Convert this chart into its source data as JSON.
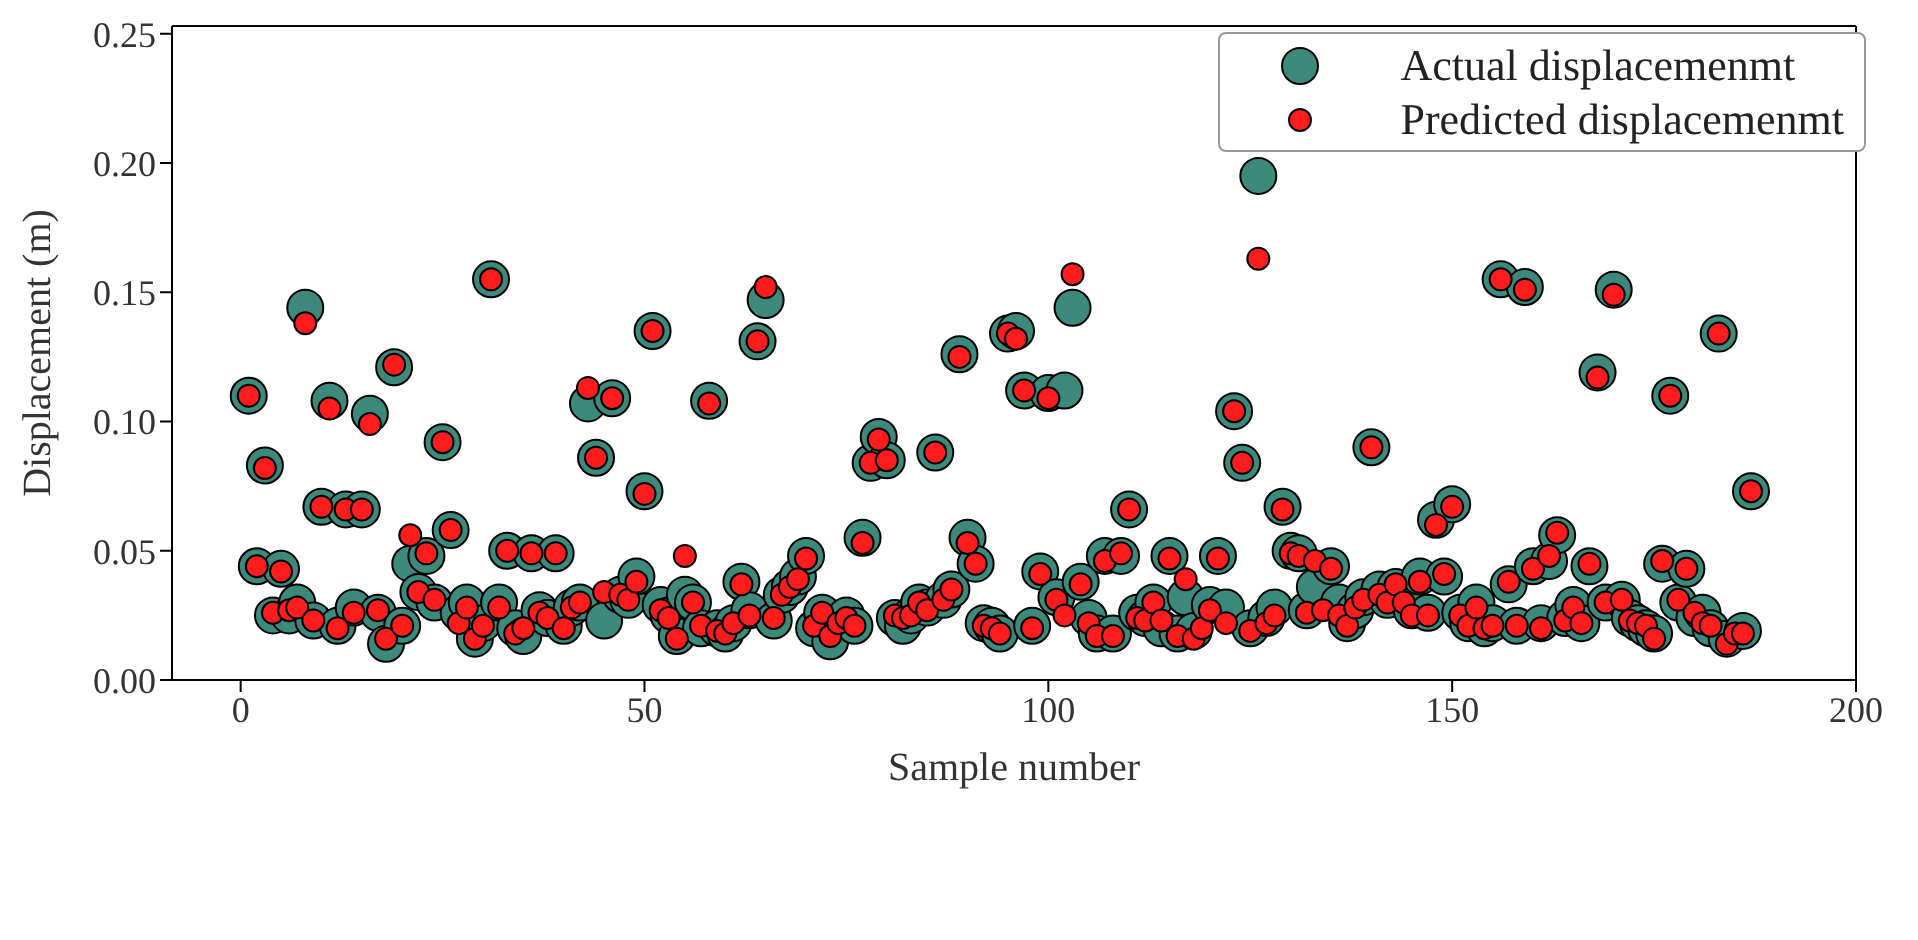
{
  "chart_data": {
    "type": "scatter",
    "xlabel": "Sample number",
    "ylabel": "Displacement (m)",
    "x": [
      1,
      2,
      3,
      4,
      5,
      6,
      7,
      8,
      9,
      10,
      11,
      12,
      13,
      14,
      15,
      16,
      17,
      18,
      19,
      20,
      21,
      22,
      23,
      24,
      25,
      26,
      27,
      28,
      29,
      30,
      31,
      32,
      33,
      34,
      35,
      36,
      37,
      38,
      39,
      40,
      41,
      42,
      43,
      44,
      45,
      46,
      47,
      48,
      49,
      50,
      51,
      52,
      53,
      54,
      55,
      56,
      57,
      58,
      59,
      60,
      61,
      62,
      63,
      64,
      65,
      66,
      67,
      68,
      69,
      70,
      71,
      72,
      73,
      74,
      75,
      76,
      77,
      78,
      79,
      80,
      81,
      82,
      83,
      84,
      85,
      86,
      87,
      88,
      89,
      90,
      91,
      92,
      93,
      94,
      95,
      96,
      97,
      98,
      99,
      100,
      101,
      102,
      103,
      104,
      105,
      106,
      107,
      108,
      109,
      110,
      111,
      112,
      113,
      114,
      115,
      116,
      117,
      118,
      119,
      120,
      121,
      122,
      123,
      124,
      125,
      126,
      127,
      128,
      129,
      130,
      131,
      132,
      133,
      134,
      135,
      136,
      137,
      138,
      139,
      140,
      141,
      142,
      143,
      144,
      145,
      146,
      147,
      148,
      149,
      150,
      151,
      152,
      153,
      154,
      155,
      156,
      157,
      158,
      159,
      160,
      161,
      162,
      163,
      164,
      165,
      166,
      167,
      168,
      169,
      170,
      171,
      172,
      173,
      174,
      175,
      176,
      177,
      178,
      179,
      180,
      181,
      182,
      183,
      184,
      185,
      186,
      187
    ],
    "series": [
      {
        "name": "Actual displacemenmt",
        "color": "#3d8a7c",
        "values": [
          0.11,
          0.044,
          0.083,
          0.025,
          0.043,
          0.025,
          0.03,
          0.144,
          0.023,
          0.067,
          0.108,
          0.021,
          0.066,
          0.028,
          0.066,
          0.103,
          0.026,
          0.014,
          0.121,
          0.021,
          0.045,
          0.034,
          0.048,
          0.03,
          0.092,
          0.058,
          0.026,
          0.03,
          0.016,
          0.022,
          0.155,
          0.03,
          0.05,
          0.02,
          0.017,
          0.049,
          0.027,
          0.024,
          0.049,
          0.021,
          0.028,
          0.03,
          0.107,
          0.086,
          0.023,
          0.109,
          0.033,
          0.031,
          0.04,
          0.073,
          0.135,
          0.029,
          0.025,
          0.017,
          0.033,
          0.03,
          0.02,
          0.108,
          0.02,
          0.018,
          0.022,
          0.038,
          0.027,
          0.131,
          0.147,
          0.023,
          0.033,
          0.036,
          0.04,
          0.048,
          0.02,
          0.026,
          0.015,
          null,
          0.025,
          0.021,
          0.055,
          0.084,
          0.094,
          0.085,
          0.024,
          0.021,
          0.025,
          0.03,
          0.028,
          0.088,
          0.031,
          0.035,
          0.126,
          0.055,
          0.045,
          0.022,
          0.021,
          0.018,
          0.134,
          0.135,
          0.112,
          0.021,
          0.042,
          0.111,
          0.032,
          0.112,
          0.144,
          0.038,
          0.024,
          0.018,
          0.048,
          0.018,
          0.048,
          0.066,
          0.026,
          0.024,
          0.03,
          0.02,
          0.048,
          0.018,
          0.032,
          0.019,
          null,
          0.029,
          0.048,
          0.028,
          0.104,
          0.084,
          0.02,
          0.195,
          0.024,
          0.028,
          0.067,
          0.05,
          0.049,
          0.027,
          0.036,
          null,
          0.044,
          0.03,
          0.022,
          0.027,
          0.032,
          0.09,
          0.035,
          0.031,
          0.036,
          null,
          0.027,
          0.04,
          0.026,
          0.062,
          0.04,
          0.068,
          0.026,
          0.022,
          0.03,
          0.02,
          0.022,
          0.155,
          0.037,
          0.021,
          0.152,
          0.044,
          0.022,
          0.046,
          0.056,
          0.024,
          0.029,
          0.022,
          0.044,
          0.119,
          0.03,
          0.151,
          0.031,
          0.024,
          0.022,
          0.02,
          0.018,
          0.045,
          0.11,
          0.03,
          0.043,
          0.024,
          0.026,
          0.02,
          0.134,
          0.016,
          null,
          0.019,
          0.073
        ]
      },
      {
        "name": "Predicted displacemenmt",
        "color": "#ff1c1c",
        "values": [
          0.11,
          0.044,
          0.082,
          0.026,
          0.042,
          0.027,
          0.028,
          0.138,
          0.023,
          0.067,
          0.105,
          0.02,
          0.066,
          0.026,
          0.066,
          0.099,
          0.027,
          0.016,
          0.122,
          0.021,
          0.056,
          0.034,
          0.049,
          0.031,
          0.092,
          0.058,
          0.022,
          0.028,
          0.016,
          0.021,
          0.155,
          0.028,
          0.05,
          0.018,
          0.02,
          0.049,
          0.026,
          0.024,
          0.049,
          0.02,
          0.028,
          0.03,
          0.113,
          0.086,
          0.034,
          0.109,
          0.033,
          0.031,
          0.038,
          0.072,
          0.135,
          0.027,
          0.024,
          0.016,
          0.048,
          0.03,
          0.021,
          0.107,
          0.019,
          0.018,
          0.022,
          0.037,
          0.025,
          0.131,
          0.152,
          0.024,
          0.033,
          0.036,
          0.039,
          0.047,
          0.021,
          0.026,
          0.017,
          0.022,
          0.024,
          0.021,
          0.053,
          0.084,
          0.093,
          0.085,
          0.025,
          0.024,
          0.025,
          0.03,
          0.027,
          0.088,
          0.031,
          0.035,
          0.125,
          0.053,
          0.045,
          0.021,
          0.02,
          0.018,
          0.134,
          0.132,
          0.112,
          0.02,
          0.041,
          0.109,
          0.031,
          0.025,
          0.157,
          0.037,
          0.022,
          0.017,
          0.046,
          0.017,
          0.049,
          0.066,
          0.024,
          0.023,
          0.03,
          0.023,
          0.047,
          0.017,
          0.039,
          0.016,
          0.02,
          0.027,
          0.047,
          0.022,
          0.104,
          0.084,
          0.019,
          0.163,
          0.022,
          0.025,
          0.066,
          0.049,
          0.048,
          0.026,
          0.046,
          0.027,
          0.043,
          0.025,
          0.021,
          0.028,
          0.031,
          0.09,
          0.033,
          0.03,
          0.037,
          0.03,
          0.025,
          0.038,
          0.025,
          0.06,
          0.041,
          0.067,
          0.025,
          0.021,
          0.028,
          0.02,
          0.021,
          0.155,
          0.038,
          0.021,
          0.151,
          0.043,
          0.02,
          0.048,
          0.057,
          0.023,
          0.028,
          0.022,
          0.045,
          0.117,
          0.03,
          0.149,
          0.031,
          0.023,
          0.022,
          0.021,
          0.016,
          0.046,
          0.11,
          0.031,
          0.043,
          0.026,
          0.022,
          0.021,
          0.134,
          0.014,
          0.018,
          0.018,
          0.073
        ]
      }
    ],
    "marker": "circle",
    "legend": "top right",
    "xlim": [
      -8.5,
      200
    ],
    "xticks": [
      0,
      50,
      100,
      150,
      200
    ],
    "ylim": [
      0,
      0.253
    ],
    "yticks": [
      {
        "value": 0,
        "label": "0.00"
      },
      {
        "value": 0.05,
        "label": "0.05"
      },
      {
        "value": 0.1,
        "label": "0.10"
      },
      {
        "value": 0.15,
        "label": "0.15"
      },
      {
        "value": 0.2,
        "label": "0.20"
      },
      {
        "value": 0.25,
        "label": "0.25"
      }
    ]
  }
}
